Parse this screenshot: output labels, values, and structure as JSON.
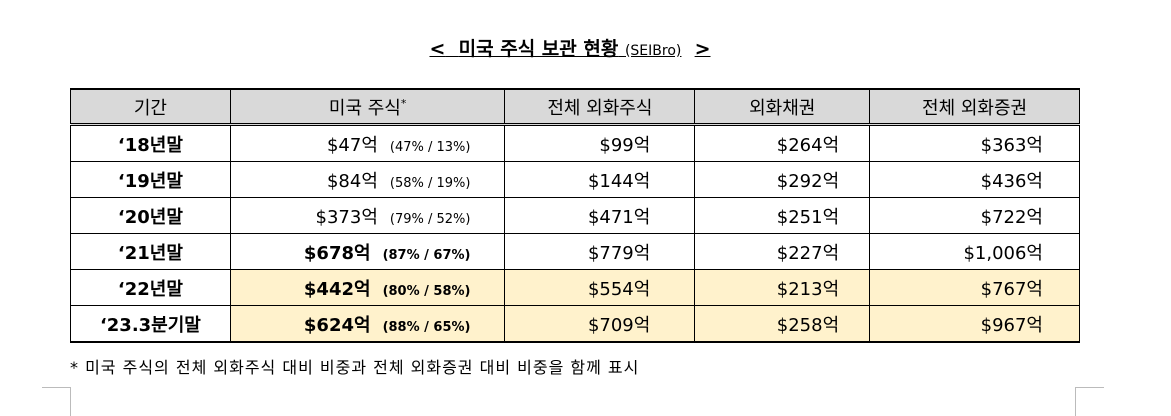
{
  "title": {
    "open": "<",
    "text": "미국 주식 보관 현황",
    "source": "(SEIBro)",
    "close": ">"
  },
  "table": {
    "headers": [
      "기간",
      "미국 주식",
      "전체 외화주식",
      "외화채권",
      "전체 외화증권"
    ],
    "header_note": "*",
    "rows": [
      [
        "‘18년말",
        "$47억",
        "(47% / 13%)",
        "$99억",
        "$264억",
        "$363억"
      ],
      [
        "‘19년말",
        "$84억",
        "(58% / 19%)",
        "$144억",
        "$292억",
        "$436억"
      ],
      [
        "‘20년말",
        "$373억",
        "(79% / 52%)",
        "$471억",
        "$251억",
        "$722억"
      ],
      [
        "‘21년말",
        "$678억",
        "(87% / 67%)",
        "$779억",
        "$227억",
        "$1,006억"
      ],
      [
        "‘22년말",
        "$442억",
        "(80% / 58%)",
        "$554억",
        "$213억",
        "$767억"
      ],
      [
        "‘23.3분기말",
        "$624억",
        "(88% / 65%)",
        "$709억",
        "$258억",
        "$967억"
      ]
    ]
  },
  "footnote": "* 미국 주식의 전체 외화주식 대비 비중과 전체 외화증권 대비 비중을 함께 표시"
}
